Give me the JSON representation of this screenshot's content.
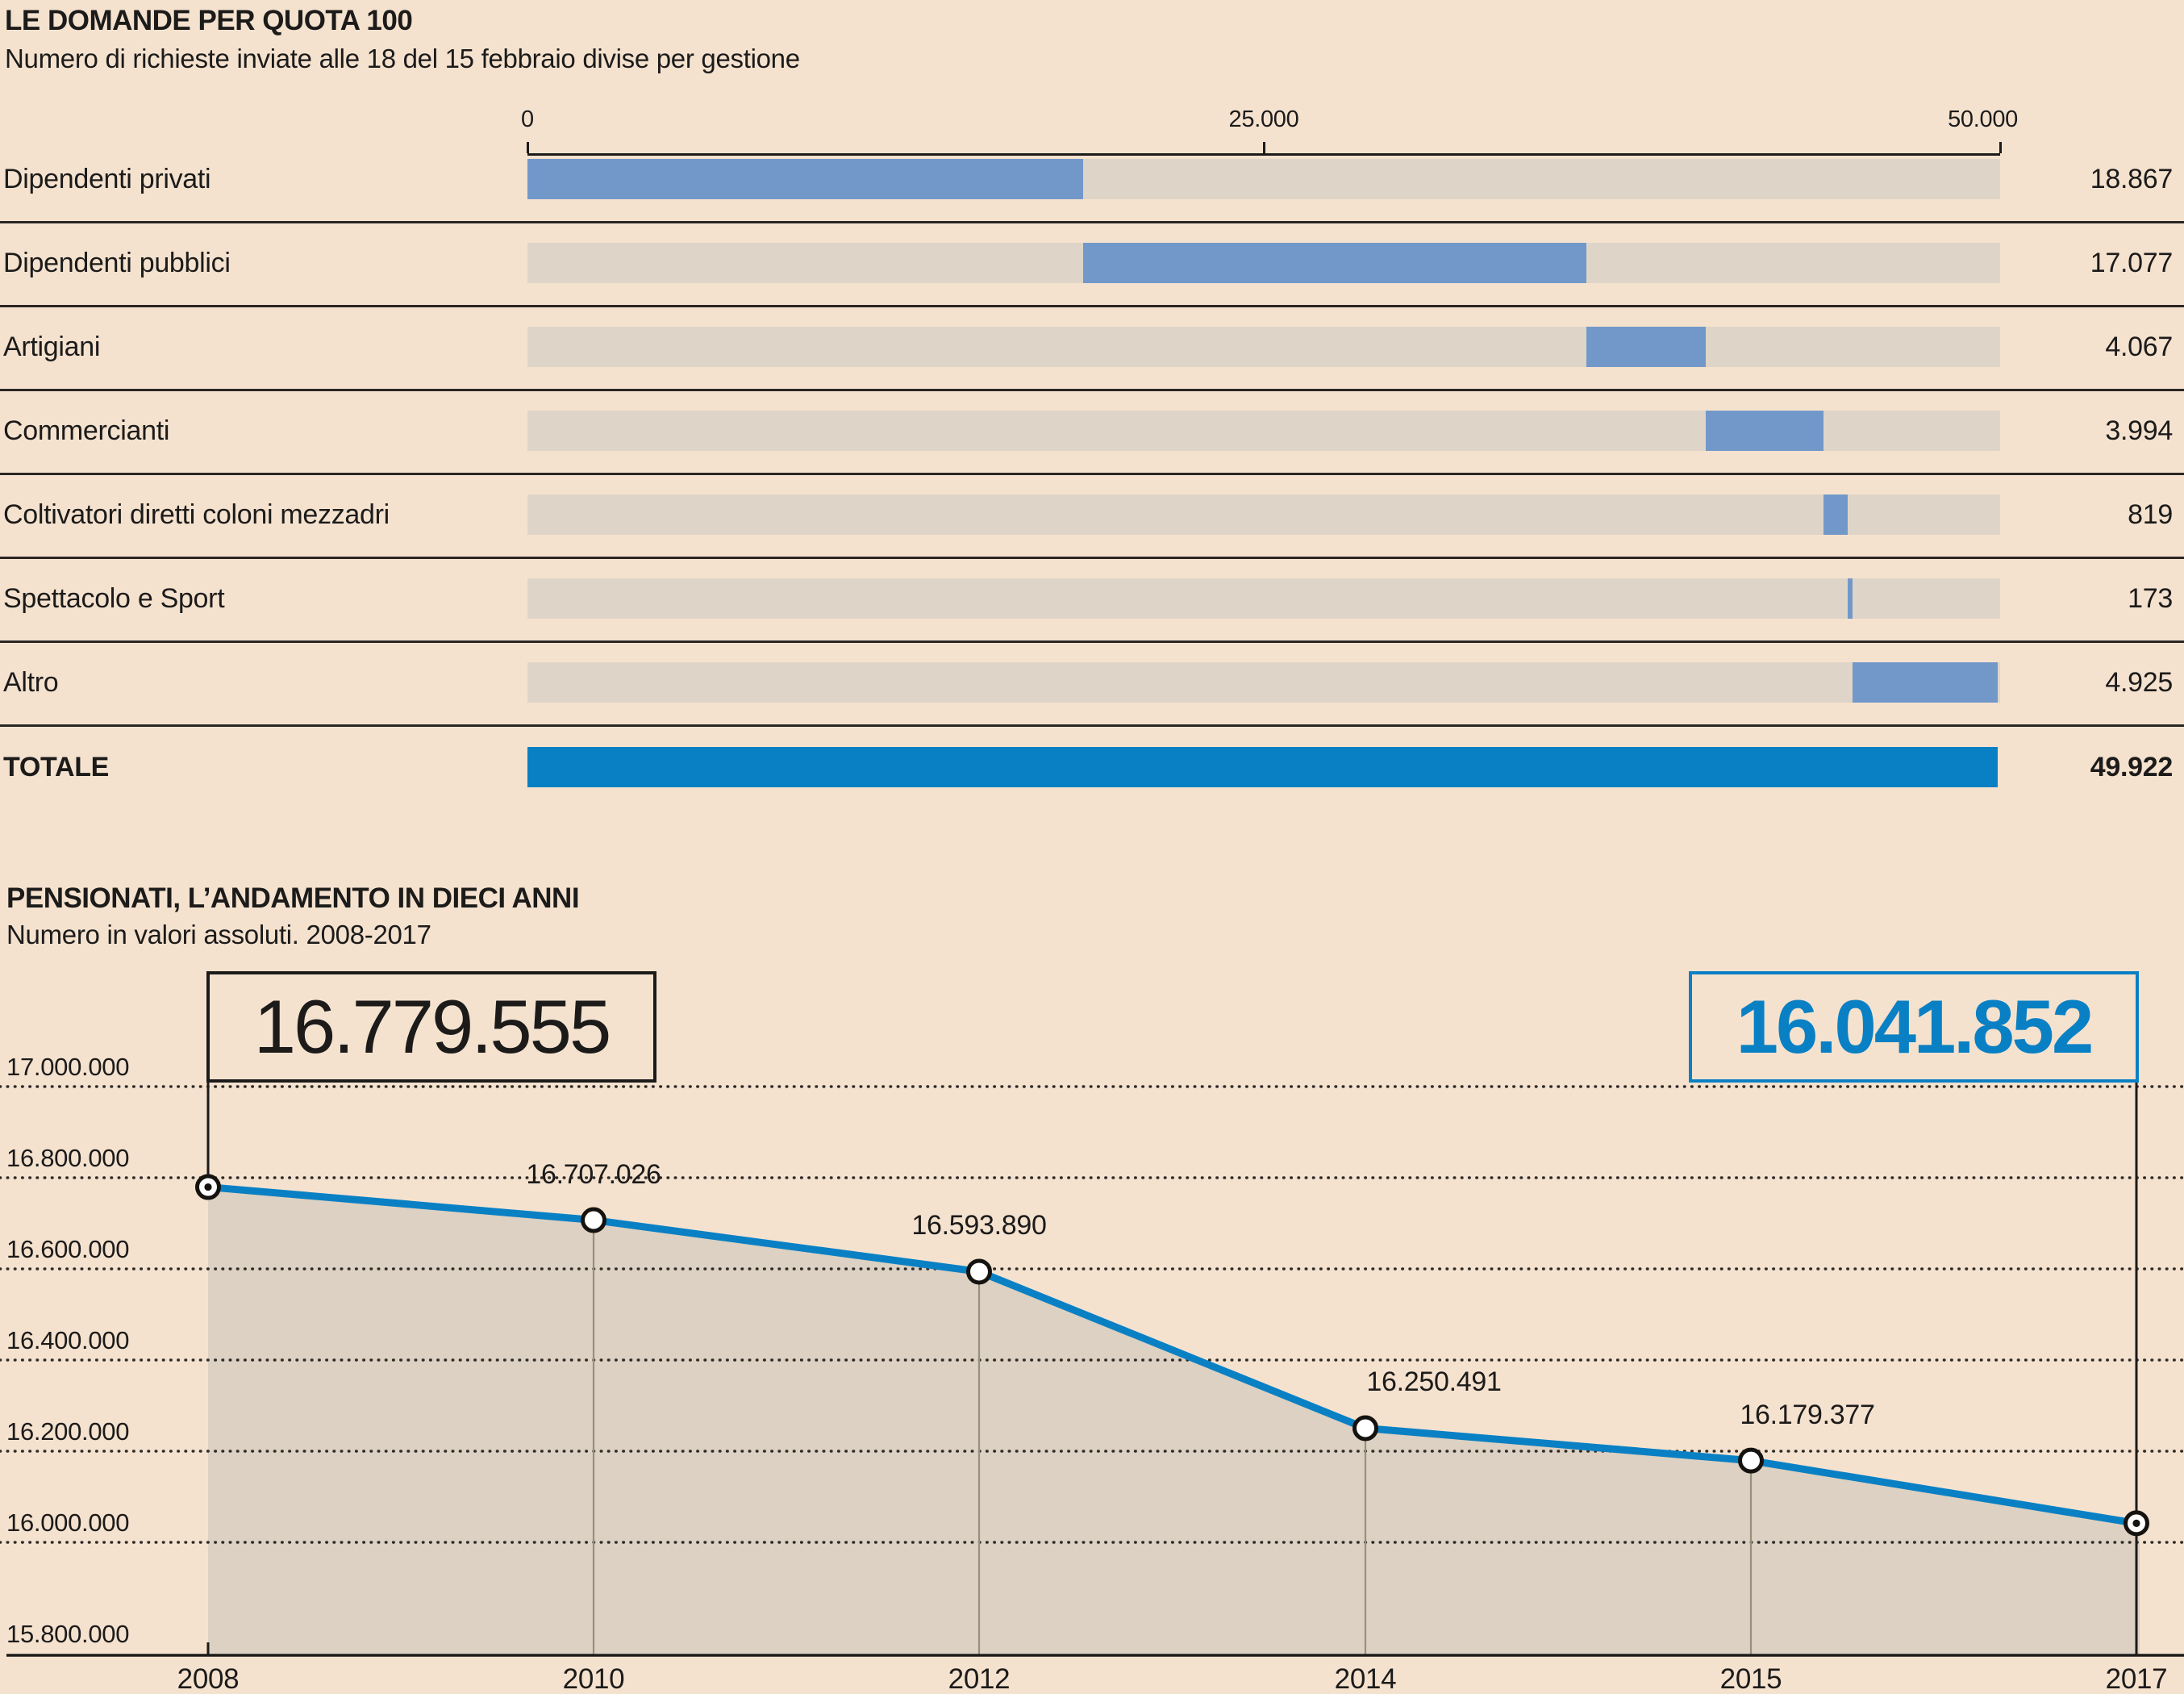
{
  "theme": {
    "background": "#f4e2cf",
    "steel_blue": "#7298c9",
    "accent_blue": "#0a80c4",
    "track_gray": "#ded5c8",
    "area_fill": "#dcd1c2",
    "text_color": "#1c1b1a",
    "guide_gray": "#97907f"
  },
  "chart_data": [
    {
      "id": "quota100",
      "type": "bar",
      "variant": "horizontal-waterfall",
      "title": "LE DOMANDE PER QUOTA 100",
      "subtitle": "Numero di richieste inviate alle 18 del 15 febbraio divise per gestione",
      "categories": [
        "Dipendenti privati",
        "Dipendenti pubblici",
        "Artigiani",
        "Commercianti",
        "Coltivatori diretti coloni mezzadri",
        "Spettacolo e Sport",
        "Altro"
      ],
      "values": [
        18867,
        17077,
        4067,
        3994,
        819,
        173,
        4925
      ],
      "value_labels": [
        "18.867",
        "17.077",
        "4.067",
        "3.994",
        "819",
        "173",
        "4.925"
      ],
      "total": {
        "label": "TOTALE",
        "value": 49922,
        "value_label": "49.922"
      },
      "xlim": [
        0,
        50000
      ],
      "x_ticks": [
        {
          "value": 0,
          "label": "0"
        },
        {
          "value": 25000,
          "label": "25.000"
        },
        {
          "value": 50000,
          "label": "50.000"
        }
      ],
      "grid": "off",
      "legend": "none"
    },
    {
      "id": "pensionati",
      "type": "line",
      "title": "PENSIONATI, L’ANDAMENTO IN DIECI ANNI",
      "subtitle": "Numero in valori assoluti. 2008-2017",
      "x": [
        "2008",
        "2010",
        "2012",
        "2014",
        "2015",
        "2017"
      ],
      "values": [
        16779555,
        16707026,
        16593890,
        16250491,
        16179377,
        16041852
      ],
      "point_labels": [
        "16.779.555",
        "16.707.026",
        "16.593.890",
        "16.250.491",
        "16.179.377",
        "16.041.852"
      ],
      "boxed_start": {
        "label": "16.779.555"
      },
      "boxed_end": {
        "label": "16.041.852"
      },
      "y_ticks": [
        "17.000.000",
        "16.800.000",
        "16.600.000",
        "16.400.000",
        "16.200.000",
        "16.000.000",
        "15.800.000"
      ],
      "y_gridline_values": [
        17000000,
        16800000,
        16600000,
        16400000,
        16200000,
        16000000
      ],
      "ylim": [
        15800000,
        17000000
      ],
      "grid": "dotted-horizontal",
      "area_fill": true,
      "legend": "none"
    }
  ]
}
